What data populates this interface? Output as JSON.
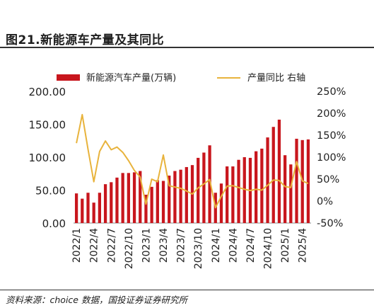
{
  "title": "图21.新能源车产量及其同比",
  "source": "资料来源：choice 数据，国投证券证券研究所",
  "chart_data": {
    "type": "bar+line",
    "categories": [
      "2022/1",
      "2022/2",
      "2022/3",
      "2022/4",
      "2022/5",
      "2022/6",
      "2022/7",
      "2022/8",
      "2022/9",
      "2022/10",
      "2022/11",
      "2022/12",
      "2023/1",
      "2023/2",
      "2023/3",
      "2023/4",
      "2023/5",
      "2023/6",
      "2023/7",
      "2023/8",
      "2023/9",
      "2023/10",
      "2023/11",
      "2023/12",
      "2024/1",
      "2024/2",
      "2024/3",
      "2024/4",
      "2024/5",
      "2024/6",
      "2024/7",
      "2024/8",
      "2024/9",
      "2024/10",
      "2024/11",
      "2024/12",
      "2025/1",
      "2025/2",
      "2025/3",
      "2025/4",
      "2025/5"
    ],
    "x_tick_labels": [
      "2022/1",
      "2022/4",
      "2022/7",
      "2022/10",
      "2023/1",
      "2023/4",
      "2023/7",
      "2023/10",
      "2024/1",
      "2024/4",
      "2024/7",
      "2024/10",
      "2025/1",
      "2025/4"
    ],
    "series": [
      {
        "name": "新能源汽车产量(万辆)",
        "type": "bar",
        "axis": "left",
        "color": "#c8161d",
        "values": [
          45,
          37,
          46,
          31,
          46,
          59,
          62,
          69,
          76,
          76,
          77,
          79,
          43,
          55,
          65,
          64,
          72,
          79,
          81,
          85,
          88,
          99,
          107,
          118,
          46,
          60,
          86,
          86,
          96,
          100,
          99,
          109,
          113,
          130,
          146,
          157,
          103,
          89,
          128,
          126,
          127
        ]
      },
      {
        "name": "产量同比 右轴",
        "type": "line",
        "axis": "right",
        "color": "#e8b33c",
        "values": [
          132,
          197,
          118,
          44,
          113,
          137,
          117,
          123,
          111,
          92,
          70,
          55,
          -7,
          50,
          44,
          105,
          35,
          32,
          29,
          23,
          16,
          30,
          39,
          49,
          -15,
          11,
          34,
          35,
          31,
          27,
          24,
          27,
          25,
          36,
          48,
          47,
          33,
          31,
          90,
          46,
          40
        ]
      }
    ],
    "y_left": {
      "min": 0,
      "max": 200,
      "ticks": [
        "0.00",
        "50.00",
        "100.00",
        "150.00",
        "200.00"
      ]
    },
    "y_right": {
      "min": -50,
      "max": 250,
      "ticks": [
        "-50%",
        "0%",
        "50%",
        "100%",
        "150%",
        "200%",
        "250%"
      ]
    },
    "legend_position": "top"
  }
}
